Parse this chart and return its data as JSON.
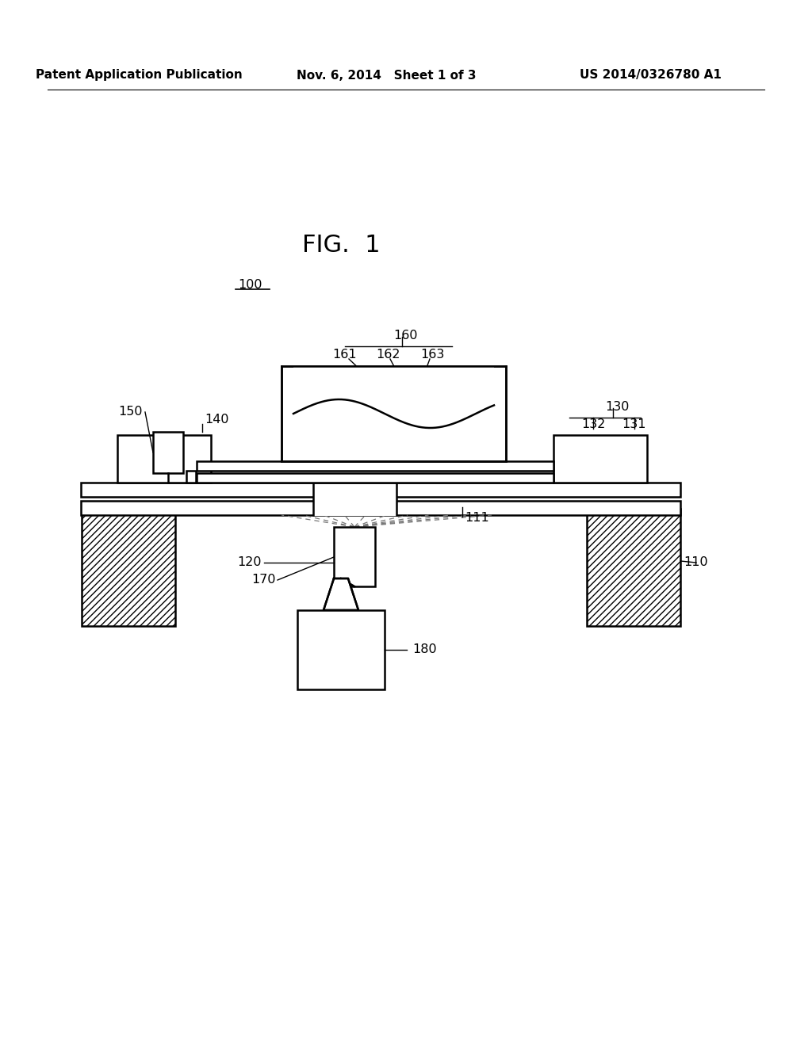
{
  "bg_color": "#ffffff",
  "header_left": "Patent Application Publication",
  "header_mid": "Nov. 6, 2014   Sheet 1 of 3",
  "header_right": "US 2014/0326780 A1",
  "fig_label": "FIG.  1",
  "label_100": "100",
  "label_110": "110",
  "label_111": "111",
  "label_120": "120",
  "label_130": "130",
  "label_131": "131",
  "label_132": "132",
  "label_140": "140",
  "label_150": "150",
  "label_160": "160",
  "label_161": "161",
  "label_162": "162",
  "label_163": "163",
  "label_170": "170",
  "label_180": "180"
}
